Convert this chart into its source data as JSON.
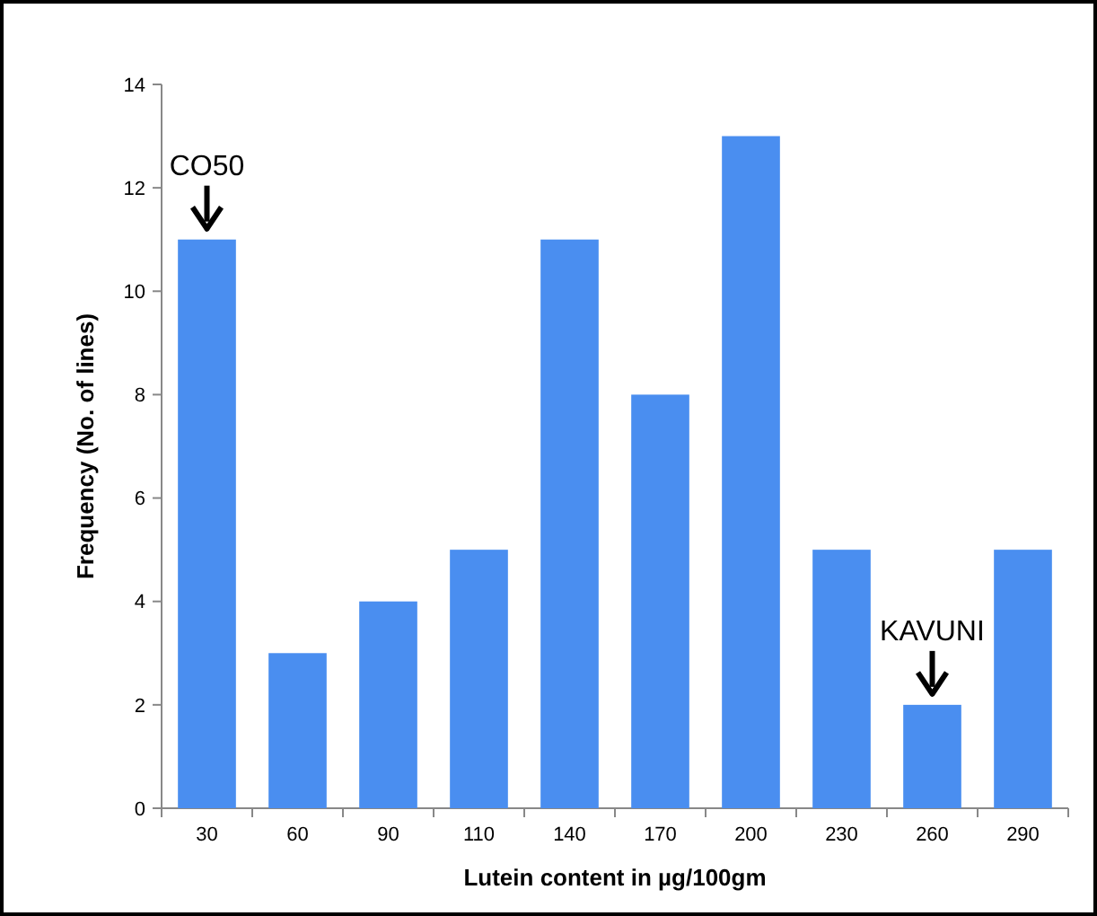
{
  "chart_data": {
    "type": "bar",
    "xlabel": "Lutein content in µg/100gm",
    "ylabel": "Frequency (No. of lines)",
    "categories": [
      "30",
      "60",
      "90",
      "110",
      "140",
      "170",
      "200",
      "230",
      "260",
      "290"
    ],
    "values": [
      11,
      3,
      4,
      5,
      11,
      8,
      13,
      5,
      2,
      5
    ],
    "color": "#4a8ef0",
    "ylim": [
      0,
      14
    ],
    "yticks": [
      0,
      2,
      4,
      6,
      8,
      10,
      12,
      14
    ],
    "annotations": [
      {
        "text": "CO50",
        "x": "30",
        "y": 11
      },
      {
        "text": "KAVUNI",
        "x": "260",
        "y": 2
      }
    ]
  }
}
